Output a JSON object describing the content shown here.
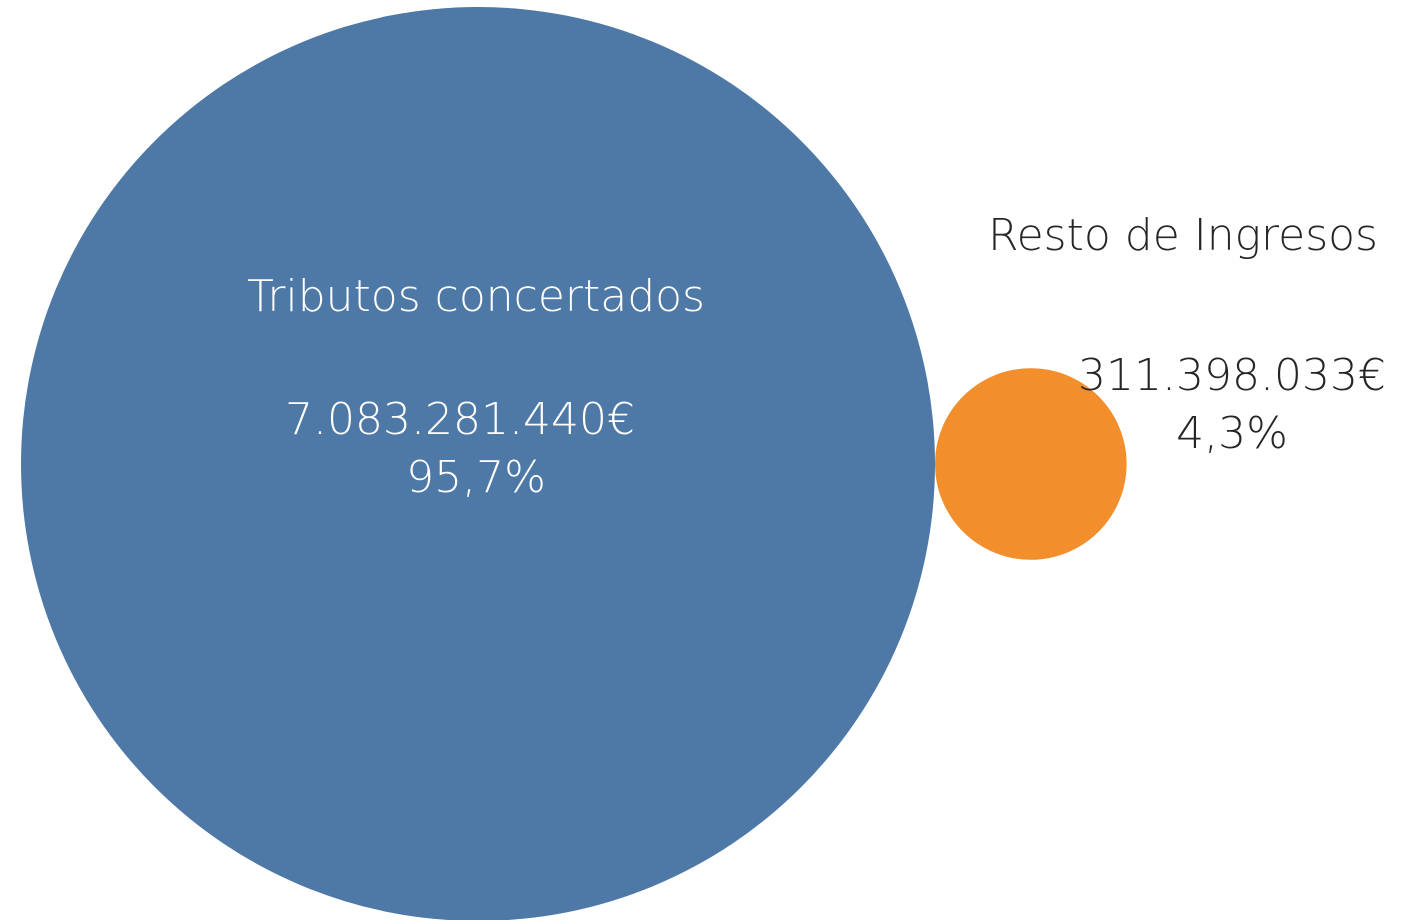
{
  "chart_data": {
    "type": "bubble",
    "series": [
      {
        "name": "Tributos concertados",
        "value": 7083281440,
        "value_label": "7.083.281.440€",
        "percent": 95.7,
        "percent_label": "95,7%",
        "color": "#4e79a7"
      },
      {
        "name": "Resto de Ingresos",
        "value": 311398033,
        "value_label": "311.398.033€",
        "percent": 4.3,
        "percent_label": "4,3%",
        "color": "#f28e2b"
      }
    ]
  }
}
